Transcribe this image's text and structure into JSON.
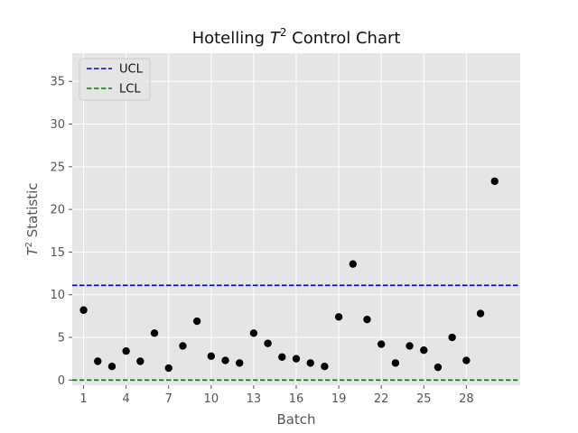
{
  "chart_data": {
    "type": "scatter",
    "title_prefix": "Hotelling ",
    "title_var": "T",
    "title_sup": "2",
    "title_suffix": " Control Chart",
    "xlabel": "Batch",
    "ylabel_var": "T",
    "ylabel_sup": "2",
    "ylabel_suffix": " Statistic",
    "xlim": [
      0.2,
      31.8
    ],
    "ylim": [
      -0.6,
      38.3
    ],
    "xticks": [
      1,
      4,
      7,
      10,
      13,
      16,
      19,
      22,
      25,
      28
    ],
    "yticks": [
      0,
      5,
      10,
      15,
      20,
      25,
      30,
      35
    ],
    "grid": true,
    "legend_position": "top-left",
    "colors": {
      "points": "#000000",
      "ucl": "#0000cc",
      "lcl": "#008000",
      "plot_bg": "#e5e5e5",
      "grid": "#ffffff"
    },
    "x": [
      1,
      2,
      3,
      4,
      5,
      6,
      7,
      8,
      9,
      10,
      11,
      12,
      13,
      14,
      15,
      16,
      17,
      18,
      19,
      20,
      21,
      22,
      23,
      24,
      25,
      26,
      27,
      28,
      29,
      30
    ],
    "y": [
      8.2,
      2.2,
      1.6,
      3.4,
      2.2,
      5.5,
      1.4,
      4.0,
      6.9,
      2.8,
      2.3,
      2.0,
      5.5,
      4.3,
      2.7,
      2.5,
      2.0,
      1.6,
      7.4,
      13.6,
      7.1,
      4.2,
      2.0,
      4.0,
      3.5,
      1.5,
      5.0,
      2.3,
      7.8,
      23.3
    ],
    "lines": [
      {
        "name": "UCL",
        "value": 11.1
      },
      {
        "name": "LCL",
        "value": 0.0
      }
    ]
  }
}
